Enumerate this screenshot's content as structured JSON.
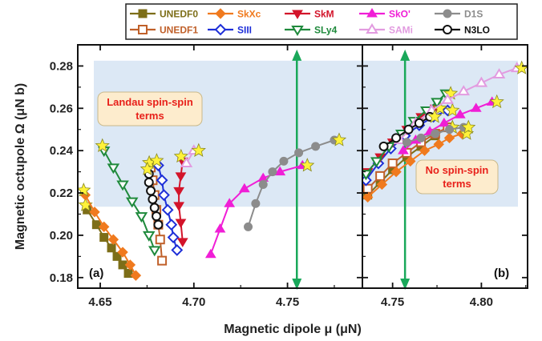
{
  "chart_data": {
    "type": "line",
    "xlabel": "Magnetic dipole μ (μN)",
    "ylabel": "Magnetic octupole Ω (μN b)",
    "ylim": [
      0.175,
      0.29
    ],
    "yticks": [
      "0.18",
      "0.20",
      "0.22",
      "0.24",
      "0.26",
      "0.28"
    ],
    "grid": false,
    "legend_position": "top",
    "shaded_band": {
      "y_range": [
        0.2135,
        0.2825
      ],
      "color": "#dce8f5"
    },
    "highlight_marker": {
      "shape": "star",
      "color": "#fff23a"
    },
    "panels": [
      {
        "label": "(a)",
        "xlim": [
          4.638,
          4.79
        ],
        "xticks": [
          "4.65",
          "4.70",
          "4.75"
        ],
        "vertical_arrow": {
          "x": 4.755,
          "y_range": [
            0.175,
            0.287
          ],
          "color": "#1aa85a"
        },
        "annotation": {
          "lines": [
            "Landau spin-spin",
            "terms"
          ],
          "color": "#e8201a",
          "box_color": "#fdeccd"
        },
        "series": [
          {
            "name": "UNEDF0",
            "x": [
              4.643,
              4.648,
              4.652,
              4.656,
              4.659,
              4.662,
              4.665
            ],
            "y": [
              0.212,
              0.205,
              0.199,
              0.194,
              0.19,
              0.186,
              0.182
            ]
          },
          {
            "name": "UNEDF1",
            "x": [
              4.677,
              4.678,
              4.679,
              4.68,
              4.681,
              4.682,
              4.683
            ],
            "y": [
              0.232,
              0.226,
              0.219,
              0.212,
              0.205,
              0.198,
              0.188
            ]
          },
          {
            "name": "SkXc",
            "x": [
              4.642,
              4.647,
              4.652,
              4.657,
              4.662,
              4.666,
              4.669
            ],
            "y": [
              0.219,
              0.211,
              0.204,
              0.198,
              0.192,
              0.186,
              0.181
            ]
          },
          {
            "name": "SIII",
            "x": [
              4.681,
              4.683,
              4.684,
              4.686,
              4.688,
              4.689,
              4.691
            ],
            "y": [
              0.233,
              0.226,
              0.219,
              0.212,
              0.205,
              0.199,
              0.193
            ]
          },
          {
            "name": "SkM",
            "x": [
              4.694,
              4.693,
              4.692,
              4.692,
              4.693,
              4.694
            ],
            "y": [
              0.235,
              0.228,
              0.221,
              0.214,
              0.206,
              0.197
            ]
          },
          {
            "name": "SLy4",
            "x": [
              4.652,
              4.657,
              4.662,
              4.667,
              4.672,
              4.676,
              4.679
            ],
            "y": [
              0.24,
              0.232,
              0.224,
              0.216,
              0.209,
              0.2,
              0.193
            ]
          },
          {
            "name": "SkO'",
            "x": [
              4.709,
              4.714,
              4.719,
              4.727,
              4.737,
              4.746,
              4.758
            ],
            "y": [
              0.191,
              0.203,
              0.215,
              0.222,
              0.227,
              0.23,
              0.233
            ]
          },
          {
            "name": "SAMi",
            "x": [
              4.696,
              4.7
            ],
            "y": [
              0.234,
              0.24
            ]
          },
          {
            "name": "D1S",
            "x": [
              4.729,
              4.733,
              4.737,
              4.742,
              4.748,
              4.756,
              4.765,
              4.775
            ],
            "y": [
              0.204,
              0.215,
              0.224,
              0.23,
              0.235,
              0.239,
              0.242,
              0.245
            ]
          },
          {
            "name": "N3LO",
            "x": [
              4.676,
              4.676,
              4.677,
              4.678,
              4.679,
              4.68,
              4.681
            ],
            "y": [
              0.229,
              0.225,
              0.221,
              0.217,
              0.213,
              0.209,
              0.205
            ]
          }
        ]
      },
      {
        "label": "(b)",
        "xlim": [
          4.733,
          4.826
        ],
        "xticks": [
          "4.75",
          "4.80"
        ],
        "vertical_arrow": {
          "x": 4.757,
          "y_range": [
            0.175,
            0.287
          ],
          "color": "#1aa85a"
        },
        "annotation": {
          "lines": [
            "No spin-spin",
            "terms"
          ],
          "color": "#e8201a",
          "box_color": "#fdeccd"
        },
        "series": [
          {
            "name": "UNEDF0",
            "x": [
              4.736,
              4.743,
              4.75,
              4.758,
              4.766,
              4.774,
              4.781
            ],
            "y": [
              0.219,
              0.225,
              0.231,
              0.237,
              0.242,
              0.247,
              0.251
            ]
          },
          {
            "name": "UNEDF1",
            "x": [
              4.736,
              4.743,
              4.75,
              4.758,
              4.766,
              4.774,
              4.781
            ],
            "y": [
              0.222,
              0.228,
              0.234,
              0.239,
              0.244,
              0.248,
              0.251
            ]
          },
          {
            "name": "SkXc",
            "x": [
              4.736,
              4.744,
              4.752,
              4.76,
              4.768,
              4.776,
              4.782,
              4.789
            ],
            "y": [
              0.218,
              0.224,
              0.23,
              0.235,
              0.24,
              0.243,
              0.246,
              0.248
            ]
          },
          {
            "name": "SIII",
            "x": [
              4.735,
              4.742,
              4.749,
              4.757,
              4.765,
              4.773,
              4.781
            ],
            "y": [
              0.226,
              0.234,
              0.241,
              0.247,
              0.252,
              0.256,
              0.259
            ]
          },
          {
            "name": "SkM",
            "x": [
              4.736,
              4.743,
              4.75,
              4.758,
              4.766,
              4.774
            ],
            "y": [
              0.23,
              0.237,
              0.244,
              0.25,
              0.256,
              0.26
            ]
          },
          {
            "name": "SLy4",
            "x": [
              4.735,
              4.741,
              4.748,
              4.755,
              4.762,
              4.769,
              4.775,
              4.78
            ],
            "y": [
              0.229,
              0.235,
              0.242,
              0.248,
              0.254,
              0.259,
              0.263,
              0.267
            ]
          },
          {
            "name": "SkO'",
            "x": [
              4.756,
              4.763,
              4.771,
              4.779,
              4.788,
              4.797,
              4.806
            ],
            "y": [
              0.24,
              0.245,
              0.249,
              0.253,
              0.257,
              0.26,
              0.263
            ]
          },
          {
            "name": "SAMi",
            "x": [
              4.754,
              4.763,
              4.772,
              4.781,
              4.79,
              4.8,
              4.81,
              4.82
            ],
            "y": [
              0.245,
              0.253,
              0.259,
              0.264,
              0.268,
              0.272,
              0.276,
              0.279
            ]
          },
          {
            "name": "D1S",
            "x": [
              4.758,
              4.766,
              4.774,
              4.782,
              4.79
            ],
            "y": [
              0.244,
              0.246,
              0.248,
              0.25,
              0.251
            ]
          },
          {
            "name": "N3LO",
            "x": [
              4.745,
              4.752,
              4.759,
              4.765,
              4.771
            ],
            "y": [
              0.242,
              0.246,
              0.25,
              0.253,
              0.256
            ]
          }
        ]
      }
    ]
  },
  "series_style": {
    "UNEDF0": {
      "color": "#7d6e18",
      "marker": "square",
      "fill": "filled"
    },
    "UNEDF1": {
      "color": "#c0602a",
      "marker": "square",
      "fill": "open"
    },
    "SkXc": {
      "color": "#f07a1e",
      "marker": "diamond",
      "fill": "filled"
    },
    "SIII": {
      "color": "#1e2fd8",
      "marker": "diamond",
      "fill": "open"
    },
    "SkM": {
      "color": "#d3142a",
      "marker": "triangle-down",
      "fill": "filled"
    },
    "SLy4": {
      "color": "#1f8a3c",
      "marker": "triangle-down",
      "fill": "open"
    },
    "SkO'": {
      "color": "#f01ed6",
      "marker": "triangle-up",
      "fill": "filled"
    },
    "SAMi": {
      "color": "#e29be0",
      "marker": "triangle-up",
      "fill": "open"
    },
    "D1S": {
      "color": "#8c8c8c",
      "marker": "circle",
      "fill": "filled"
    },
    "N3LO": {
      "color": "#111111",
      "marker": "circle",
      "fill": "open"
    }
  },
  "legend": [
    [
      "UNEDF0",
      "SkXc",
      "SkM",
      "SkO'",
      "D1S"
    ],
    [
      "UNEDF1",
      "SIII",
      "SLy4",
      "SAMi",
      "N3LO"
    ]
  ]
}
